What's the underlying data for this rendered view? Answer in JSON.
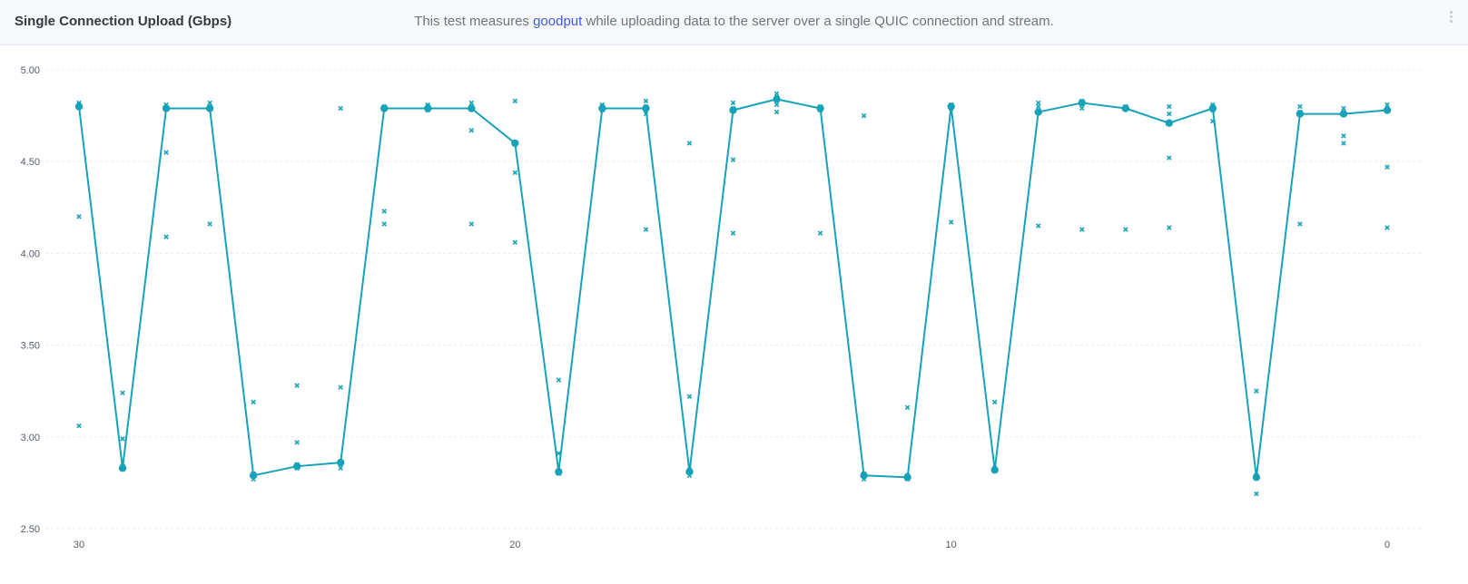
{
  "header": {
    "title": "Single Connection Upload (Gbps)",
    "description_prefix": "This test measures ",
    "description_link": "goodput",
    "description_suffix": " while uploading data to the server over a single QUIC connection and stream.",
    "menu_icon": "kebab-menu-icon"
  },
  "colors": {
    "series": "#17a2b8",
    "grid": "#e9ecef",
    "header_bg": "#f7f8fb",
    "link": "#3a5bd9"
  },
  "chart_data": {
    "type": "line",
    "title": "Single Connection Upload (Gbps)",
    "xlabel": "",
    "ylabel": "",
    "ylim": [
      2.5,
      5.0
    ],
    "xlim": [
      30,
      0
    ],
    "y_ticks": [
      "5.00",
      "4.50",
      "4.00",
      "3.50",
      "3.00",
      "2.50"
    ],
    "x_ticks": [
      "30",
      "20",
      "10",
      "0"
    ],
    "grid": true,
    "series": [
      {
        "kind": "median-line",
        "x": [
          30,
          29,
          28,
          27,
          26,
          25,
          24,
          23,
          22,
          21,
          20,
          19,
          18,
          17,
          16,
          15,
          14,
          13,
          12,
          11,
          10,
          9,
          8,
          7,
          6,
          5,
          4,
          3,
          2,
          1,
          0
        ],
        "y": [
          4.8,
          2.83,
          4.79,
          4.79,
          2.79,
          2.84,
          2.86,
          4.79,
          4.79,
          4.79,
          4.6,
          2.81,
          4.79,
          4.79,
          2.81,
          4.78,
          4.84,
          4.79,
          2.79,
          2.78,
          4.8,
          2.82,
          4.77,
          4.82,
          4.79,
          4.71,
          4.79,
          2.78,
          4.76,
          4.76,
          4.78
        ]
      },
      {
        "kind": "individual-runs",
        "x": [
          30,
          30,
          30,
          30,
          29,
          29,
          29,
          29,
          28,
          28,
          28,
          28,
          27,
          27,
          27,
          27,
          26,
          26,
          26,
          26,
          25,
          25,
          25,
          25,
          24,
          24,
          24,
          24,
          23,
          23,
          23,
          23,
          22,
          22,
          22,
          22,
          21,
          21,
          21,
          21,
          20,
          20,
          20,
          20,
          19,
          19,
          19,
          19,
          18,
          18,
          18,
          18,
          17,
          17,
          17,
          17,
          16,
          16,
          16,
          16,
          15,
          15,
          15,
          15,
          14,
          14,
          14,
          14,
          13,
          13,
          13,
          13,
          12,
          12,
          12,
          12,
          11,
          11,
          11,
          11,
          10,
          10,
          10,
          10,
          9,
          9,
          9,
          9,
          8,
          8,
          8,
          8,
          7,
          7,
          7,
          7,
          6,
          6,
          6,
          6,
          5,
          5,
          5,
          5,
          4,
          4,
          4,
          4,
          3,
          3,
          3,
          3,
          2,
          2,
          2,
          2,
          1,
          1,
          1,
          1,
          0,
          0,
          0,
          0
        ],
        "y": [
          4.82,
          4.2,
          3.06,
          4.81,
          3.24,
          2.99,
          2.83,
          2.84,
          4.81,
          4.55,
          4.09,
          4.79,
          4.82,
          4.16,
          4.8,
          4.79,
          3.19,
          2.77,
          2.79,
          2.8,
          3.28,
          2.97,
          2.83,
          2.85,
          4.79,
          3.27,
          2.83,
          2.86,
          4.23,
          4.16,
          4.79,
          4.8,
          4.81,
          4.78,
          4.8,
          4.79,
          4.82,
          4.67,
          4.16,
          4.79,
          4.83,
          4.44,
          4.06,
          4.6,
          3.31,
          2.91,
          2.8,
          2.81,
          4.81,
          4.78,
          4.79,
          4.8,
          4.83,
          4.76,
          4.13,
          4.8,
          4.6,
          3.22,
          2.79,
          2.82,
          4.82,
          4.51,
          4.11,
          4.79,
          4.87,
          4.81,
          4.77,
          4.85,
          4.11,
          4.78,
          4.8,
          4.79,
          4.75,
          2.77,
          2.79,
          2.8,
          3.16,
          2.77,
          2.79,
          2.78,
          4.81,
          4.17,
          4.79,
          4.8,
          3.19,
          2.82,
          2.83,
          2.82,
          4.82,
          4.15,
          4.8,
          4.77,
          4.79,
          4.13,
          4.83,
          4.82,
          4.13,
          4.79,
          4.8,
          4.79,
          4.8,
          4.76,
          4.52,
          4.14,
          4.81,
          4.72,
          4.78,
          4.8,
          3.25,
          2.69,
          2.78,
          2.79,
          4.8,
          4.16,
          4.77,
          4.76,
          4.79,
          4.64,
          4.6,
          4.76,
          4.81,
          4.47,
          4.14,
          4.78
        ]
      }
    ]
  }
}
